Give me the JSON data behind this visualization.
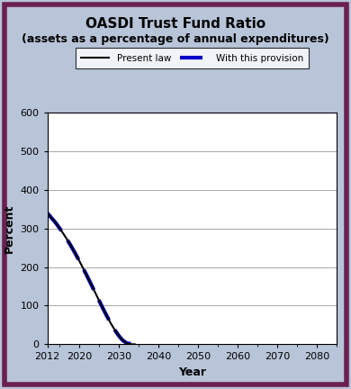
{
  "title": "OASDI Trust Fund Ratio",
  "subtitle": "(assets as a percentage of annual expenditures)",
  "xlabel": "Year",
  "ylabel": "Percent",
  "xlim": [
    2012,
    2085
  ],
  "ylim": [
    0,
    600
  ],
  "xticks": [
    2012,
    2020,
    2030,
    2040,
    2050,
    2060,
    2070,
    2080
  ],
  "yticks": [
    0,
    100,
    200,
    300,
    400,
    500,
    600
  ],
  "present_law_years": [
    2012,
    2013,
    2014,
    2015,
    2016,
    2017,
    2018,
    2019,
    2020,
    2021,
    2022,
    2023,
    2024,
    2025,
    2026,
    2027,
    2028,
    2029,
    2030,
    2031,
    2032,
    2033,
    2034
  ],
  "present_law_values": [
    340,
    328,
    316,
    302,
    287,
    271,
    254,
    236,
    217,
    197,
    177,
    156,
    135,
    114,
    93,
    73,
    54,
    37,
    22,
    10,
    3,
    0,
    0
  ],
  "provision_years": [
    2012,
    2013,
    2014,
    2015,
    2016,
    2017,
    2018,
    2019,
    2020,
    2021,
    2022,
    2023,
    2024,
    2025,
    2026,
    2027,
    2028,
    2029,
    2030,
    2031,
    2032,
    2033,
    2034,
    2035
  ],
  "provision_values": [
    340,
    328,
    316,
    302,
    287,
    271,
    254,
    236,
    217,
    197,
    177,
    156,
    135,
    114,
    93,
    73,
    54,
    37,
    22,
    10,
    3,
    1,
    0,
    0
  ],
  "present_law_color": "#000000",
  "provision_color": "#0000cc",
  "background_color": "#b8c4d8",
  "plot_bg_color": "#ffffff",
  "border_color": "#6b2050",
  "legend_label_present": "Present law",
  "legend_label_provision": "With this provision",
  "title_fontsize": 11,
  "subtitle_fontsize": 9,
  "axis_label_fontsize": 9,
  "tick_fontsize": 8
}
